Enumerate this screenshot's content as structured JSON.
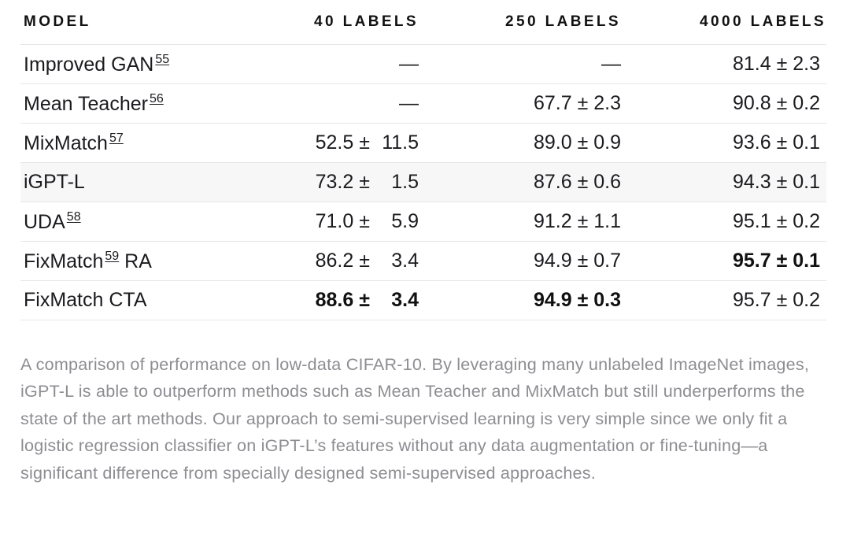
{
  "table": {
    "headers": [
      "MODEL",
      "40 LABELS",
      "250 LABELS",
      "4000 LABELS"
    ],
    "rows": [
      {
        "model": "Improved GAN",
        "ref": "55",
        "suffix": "",
        "v40": {
          "text": "—",
          "mean": "",
          "pm": "",
          "err": ""
        },
        "v250": "—",
        "v4000": "81.4 ± 2.3",
        "bold": []
      },
      {
        "model": "Mean Teacher",
        "ref": "56",
        "suffix": "",
        "v40": {
          "text": "—",
          "mean": "",
          "pm": "",
          "err": ""
        },
        "v250": "67.7 ± 2.3",
        "v4000": "90.8 ± 0.2",
        "bold": []
      },
      {
        "model": "MixMatch",
        "ref": "57",
        "suffix": "",
        "v40": {
          "text": "",
          "mean": "52.5",
          "pm": "±",
          "err": "11.5"
        },
        "v250": "89.0 ± 0.9",
        "v4000": "93.6 ± 0.1",
        "bold": []
      },
      {
        "model": "iGPT-L",
        "ref": "",
        "suffix": "",
        "highlight": true,
        "v40": {
          "text": "",
          "mean": "73.2",
          "pm": "±",
          "err": "1.5"
        },
        "v250": "87.6 ± 0.6",
        "v4000": "94.3 ± 0.1",
        "bold": []
      },
      {
        "model": "UDA",
        "ref": "58",
        "suffix": "",
        "v40": {
          "text": "",
          "mean": "71.0",
          "pm": "±",
          "err": "5.9"
        },
        "v250": "91.2 ± 1.1",
        "v4000": "95.1 ± 0.2",
        "bold": []
      },
      {
        "model": "FixMatch",
        "ref": "59",
        "suffix": "RA",
        "v40": {
          "text": "",
          "mean": "86.2",
          "pm": "±",
          "err": "3.4"
        },
        "v250": "94.9 ± 0.7",
        "v4000": "95.7 ± 0.1",
        "bold": [
          "v4000"
        ]
      },
      {
        "model": "FixMatch CTA",
        "ref": "",
        "suffix": "",
        "v40": {
          "text": "",
          "mean": "88.6",
          "pm": "±",
          "err": "3.4"
        },
        "v250": "94.9 ± 0.3",
        "v4000": "95.7 ± 0.2",
        "bold": [
          "v40",
          "v250"
        ]
      }
    ]
  },
  "caption": "A comparison of performance on low-data CIFAR-10. By leveraging many unlabeled ImageNet images, iGPT-L is able to outperform methods such as Mean Teacher and MixMatch but still underperforms the state of the art methods. Our approach to semi-supervised learning is very simple since we only fit a logistic regression classifier on iGPT-L’s features without any data augmentation or fine-tuning—a significant difference from specially designed semi-supervised approaches."
}
